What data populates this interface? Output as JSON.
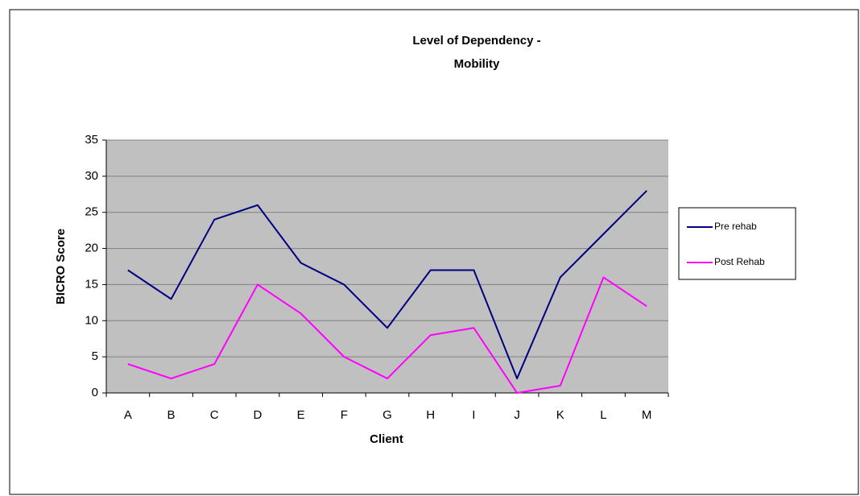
{
  "chart_data": {
    "type": "line",
    "title": [
      "Level of Dependency -",
      "Mobility"
    ],
    "x_label": "Client",
    "y_label": "BICRO Score",
    "categories": [
      "A",
      "B",
      "C",
      "D",
      "E",
      "F",
      "G",
      "H",
      "I",
      "J",
      "K",
      "L",
      "M"
    ],
    "series": [
      {
        "name": "Pre rehab",
        "color": "#000080",
        "values": [
          17,
          13,
          24,
          26,
          18,
          15,
          9,
          17,
          17,
          2,
          16,
          22,
          28
        ]
      },
      {
        "name": "Post Rehab",
        "color": "#ff00ff",
        "values": [
          4,
          2,
          4,
          15,
          11,
          5,
          2,
          8,
          9,
          0,
          1,
          16,
          12
        ]
      }
    ],
    "ylim": [
      0,
      35
    ],
    "yticks": [
      0,
      5,
      10,
      15,
      20,
      25,
      30,
      35
    ],
    "grid": true,
    "plot_background": "#c0c0c0",
    "legend": "right"
  }
}
